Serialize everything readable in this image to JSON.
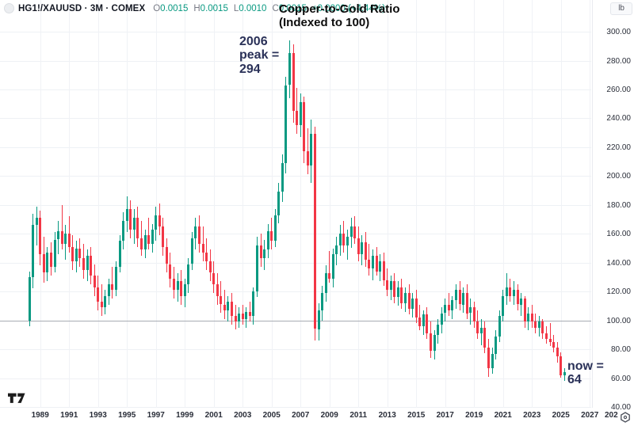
{
  "header": {
    "symbol_line": "HG1!/XAUUSD · 3M · COMEX",
    "ohlc": {
      "o_label": "O",
      "o_value": "0.0015",
      "h_label": "H",
      "h_value": "0.0015",
      "l_label": "L",
      "l_value": "0.0010",
      "c_label": "C",
      "c_value": "0.0015",
      "change": "+0.0000 (+4.44%)"
    }
  },
  "title": {
    "line1": "Copper-to-Gold Ratio",
    "line2": "(Indexed to 100)"
  },
  "annotations": {
    "peak": {
      "line1": "2006",
      "line2": "peak =",
      "line3": "294"
    },
    "now": {
      "line1": "now =",
      "line2": "64"
    }
  },
  "price_axis": {
    "unit_label": "lb",
    "ticks": [
      "300.00",
      "280.00",
      "260.00",
      "240.00",
      "220.00",
      "200.00",
      "180.00",
      "160.00",
      "140.00",
      "120.00",
      "100.00",
      "80.00",
      "60.00",
      "40.00"
    ]
  },
  "time_axis": {
    "ticks": [
      "1989",
      "1991",
      "1993",
      "1995",
      "1997",
      "1999",
      "2001",
      "2003",
      "2005",
      "2007",
      "2009",
      "2011",
      "2013",
      "2015",
      "2017",
      "2019",
      "2021",
      "2023",
      "2025",
      "2027"
    ],
    "partial_tick": "202"
  },
  "colors": {
    "up": "#089981",
    "down": "#f23645",
    "grid": "#eef1f5",
    "baseline": "#a8acb3",
    "annotation": "#2a3158",
    "axis_text": "#2a2e39"
  },
  "chart_data": {
    "type": "candlestick",
    "symbol": "HG1!/XAUUSD",
    "timeframe": "3M",
    "exchange": "COMEX",
    "title": "Copper-to-Gold Ratio (Indexed to 100)",
    "ylim": [
      40,
      300
    ],
    "y_tick_step": 20,
    "baseline_value": 100,
    "x_years_visible": [
      1988,
      2029
    ],
    "annotated_points": {
      "peak_2006": 294,
      "now": 64
    },
    "candles": {
      "start_year": 1988.25,
      "interval_years": 0.25,
      "ohlc_order": [
        "open",
        "high",
        "low",
        "close"
      ],
      "ohlc": [
        [
          100,
          134,
          96,
          130
        ],
        [
          130,
          174,
          122,
          166
        ],
        [
          166,
          179,
          152,
          171
        ],
        [
          171,
          176,
          138,
          146
        ],
        [
          146,
          158,
          126,
          133
        ],
        [
          133,
          151,
          127,
          147
        ],
        [
          147,
          154,
          131,
          137
        ],
        [
          137,
          161,
          133,
          156
        ],
        [
          156,
          169,
          146,
          162
        ],
        [
          162,
          180,
          149,
          153
        ],
        [
          153,
          166,
          142,
          160
        ],
        [
          160,
          172,
          147,
          151
        ],
        [
          151,
          159,
          135,
          141
        ],
        [
          141,
          155,
          133,
          150
        ],
        [
          150,
          157,
          137,
          143
        ],
        [
          143,
          153,
          129,
          135
        ],
        [
          135,
          149,
          127,
          145
        ],
        [
          145,
          151,
          125,
          131
        ],
        [
          131,
          139,
          117,
          123
        ],
        [
          123,
          131,
          107,
          113
        ],
        [
          113,
          125,
          103,
          109
        ],
        [
          109,
          121,
          104,
          117
        ],
        [
          117,
          129,
          111,
          125
        ],
        [
          125,
          137,
          115,
          121
        ],
        [
          121,
          141,
          117,
          137
        ],
        [
          137,
          159,
          133,
          155
        ],
        [
          155,
          175,
          149,
          169
        ],
        [
          169,
          186,
          161,
          177
        ],
        [
          177,
          183,
          157,
          163
        ],
        [
          163,
          177,
          153,
          171
        ],
        [
          171,
          179,
          151,
          157
        ],
        [
          157,
          169,
          145,
          149
        ],
        [
          149,
          163,
          143,
          159
        ],
        [
          159,
          171,
          149,
          153
        ],
        [
          153,
          167,
          147,
          163
        ],
        [
          163,
          179,
          155,
          173
        ],
        [
          173,
          181,
          159,
          165
        ],
        [
          165,
          171,
          145,
          151
        ],
        [
          151,
          157,
          133,
          139
        ],
        [
          139,
          147,
          123,
          129
        ],
        [
          129,
          137,
          115,
          121
        ],
        [
          121,
          133,
          113,
          127
        ],
        [
          127,
          135,
          111,
          117
        ],
        [
          117,
          129,
          109,
          125
        ],
        [
          125,
          143,
          119,
          139
        ],
        [
          139,
          161,
          135,
          157
        ],
        [
          157,
          171,
          149,
          165
        ],
        [
          165,
          173,
          147,
          153
        ],
        [
          153,
          165,
          141,
          147
        ],
        [
          147,
          157,
          135,
          141
        ],
        [
          141,
          149,
          127,
          133
        ],
        [
          133,
          141,
          119,
          125
        ],
        [
          125,
          133,
          111,
          117
        ],
        [
          117,
          127,
          105,
          111
        ],
        [
          111,
          121,
          101,
          107
        ],
        [
          107,
          117,
          99,
          113
        ],
        [
          113,
          119,
          97,
          103
        ],
        [
          103,
          111,
          94,
          99
        ],
        [
          99,
          109,
          95,
          105
        ],
        [
          105,
          111,
          97,
          101
        ],
        [
          101,
          109,
          95,
          106
        ],
        [
          106,
          113,
          99,
          103
        ],
        [
          103,
          123,
          97,
          120
        ],
        [
          120,
          158,
          116,
          152
        ],
        [
          152,
          160,
          137,
          143
        ],
        [
          143,
          156,
          135,
          149
        ],
        [
          149,
          167,
          143,
          162
        ],
        [
          162,
          171,
          149,
          155
        ],
        [
          155,
          177,
          151,
          173
        ],
        [
          173,
          195,
          167,
          189
        ],
        [
          189,
          215,
          182,
          209
        ],
        [
          209,
          269,
          202,
          263
        ],
        [
          263,
          294,
          254,
          285
        ],
        [
          285,
          291,
          237,
          245
        ],
        [
          245,
          261,
          229,
          235
        ],
        [
          235,
          257,
          227,
          251
        ],
        [
          251,
          255,
          209,
          217
        ],
        [
          217,
          233,
          201,
          207
        ],
        [
          207,
          239,
          195,
          229
        ],
        [
          229,
          234,
          86,
          94
        ],
        [
          94,
          112,
          86,
          107
        ],
        [
          107,
          124,
          100,
          119
        ],
        [
          119,
          138,
          113,
          133
        ],
        [
          133,
          148,
          126,
          129
        ],
        [
          129,
          150,
          123,
          146
        ],
        [
          146,
          158,
          138,
          152
        ],
        [
          152,
          166,
          145,
          160
        ],
        [
          160,
          169,
          147,
          152
        ],
        [
          152,
          163,
          142,
          158
        ],
        [
          158,
          171,
          150,
          165
        ],
        [
          165,
          172,
          153,
          157
        ],
        [
          157,
          165,
          141,
          146
        ],
        [
          146,
          159,
          138,
          154
        ],
        [
          154,
          161,
          137,
          142
        ],
        [
          142,
          153,
          131,
          136
        ],
        [
          136,
          149,
          128,
          145
        ],
        [
          145,
          151,
          131,
          134
        ],
        [
          134,
          146,
          127,
          141
        ],
        [
          141,
          147,
          124,
          128
        ],
        [
          128,
          136,
          117,
          121
        ],
        [
          121,
          131,
          114,
          127
        ],
        [
          127,
          133,
          112,
          116
        ],
        [
          116,
          127,
          110,
          123
        ],
        [
          123,
          129,
          108,
          112
        ],
        [
          112,
          123,
          106,
          119
        ],
        [
          119,
          125,
          104,
          108
        ],
        [
          108,
          119,
          102,
          115
        ],
        [
          115,
          121,
          98,
          102
        ],
        [
          102,
          111,
          93,
          96
        ],
        [
          96,
          107,
          90,
          104
        ],
        [
          104,
          109,
          87,
          91
        ],
        [
          91,
          99,
          74,
          79
        ],
        [
          79,
          93,
          73,
          90
        ],
        [
          90,
          101,
          84,
          97
        ],
        [
          97,
          109,
          91,
          105
        ],
        [
          105,
          115,
          99,
          111
        ],
        [
          111,
          119,
          103,
          107
        ],
        [
          107,
          117,
          101,
          114
        ],
        [
          114,
          125,
          108,
          121
        ],
        [
          121,
          127,
          107,
          111
        ],
        [
          111,
          123,
          105,
          119
        ],
        [
          119,
          125,
          101,
          105
        ],
        [
          105,
          115,
          97,
          109
        ],
        [
          109,
          113,
          95,
          99
        ],
        [
          99,
          107,
          87,
          91
        ],
        [
          91,
          101,
          83,
          95
        ],
        [
          95,
          99,
          77,
          81
        ],
        [
          81,
          87,
          61,
          67
        ],
        [
          67,
          81,
          63,
          77
        ],
        [
          77,
          93,
          73,
          89
        ],
        [
          89,
          107,
          85,
          103
        ],
        [
          103,
          121,
          99,
          117
        ],
        [
          117,
          133,
          111,
          123
        ],
        [
          123,
          129,
          113,
          117
        ],
        [
          117,
          127,
          111,
          121
        ],
        [
          121,
          125,
          107,
          111
        ],
        [
          111,
          119,
          103,
          115
        ],
        [
          115,
          117,
          95,
          99
        ],
        [
          99,
          109,
          93,
          105
        ],
        [
          105,
          111,
          95,
          99
        ],
        [
          99,
          105,
          91,
          95
        ],
        [
          95,
          103,
          89,
          99
        ],
        [
          99,
          101,
          87,
          91
        ],
        [
          91,
          96,
          84,
          87
        ],
        [
          87,
          98,
          82,
          85
        ],
        [
          85,
          90,
          78,
          81
        ],
        [
          81,
          85,
          71,
          75
        ],
        [
          75,
          78,
          60,
          62
        ],
        [
          62,
          67,
          58,
          64
        ]
      ]
    }
  }
}
